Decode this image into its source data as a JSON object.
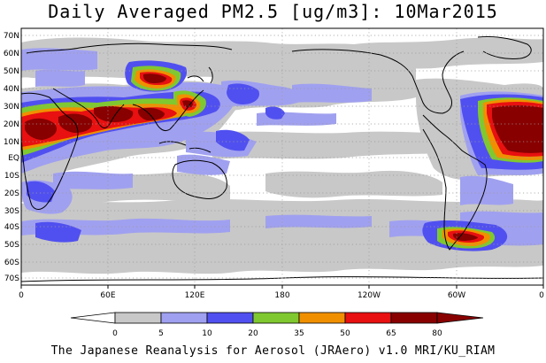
{
  "title": "Daily Averaged PM2.5 [ug/m3]: 10Mar2015",
  "footer": "The Japanese Reanalysis for Aerosol (JRAero) v1.0 MRI/KU_RIAM",
  "map": {
    "projection": "equirectangular",
    "lon_range": [
      0,
      360
    ],
    "lat_range": [
      -75,
      75
    ],
    "grid": "dotted",
    "lat_labels": [
      "70N",
      "60N",
      "50N",
      "40N",
      "30N",
      "20N",
      "10N",
      "EQ",
      "10S",
      "20S",
      "30S",
      "40S",
      "50S",
      "60S",
      "70S"
    ],
    "lat_values": [
      70,
      60,
      50,
      40,
      30,
      20,
      10,
      0,
      -10,
      -20,
      -30,
      -40,
      -50,
      -60,
      -70
    ],
    "lon_labels": [
      "0",
      "60E",
      "120E",
      "180",
      "120W",
      "60W",
      "0"
    ],
    "lon_values": [
      0,
      60,
      120,
      180,
      240,
      300,
      360
    ]
  },
  "colorbar": {
    "labels": [
      "0",
      "5",
      "10",
      "20",
      "35",
      "50",
      "65",
      "80"
    ],
    "colors": [
      "#ffffff",
      "#c8c8c8",
      "#a0a0f0",
      "#5050f0",
      "#80c830",
      "#f09000",
      "#e81010",
      "#880000"
    ]
  },
  "legend_bins": [
    {
      "min": 0,
      "max": 5,
      "color": "#ffffff"
    },
    {
      "min": 5,
      "max": 10,
      "color": "#c8c8c8"
    },
    {
      "min": 10,
      "max": 20,
      "color": "#a0a0f0"
    },
    {
      "min": 20,
      "max": 35,
      "color": "#5050f0"
    },
    {
      "min": 35,
      "max": 50,
      "color": "#80c830"
    },
    {
      "min": 50,
      "max": 65,
      "color": "#f09000"
    },
    {
      "min": 65,
      "max": 80,
      "color": "#e81010"
    },
    {
      "min": 80,
      "max": null,
      "color": "#880000"
    }
  ]
}
